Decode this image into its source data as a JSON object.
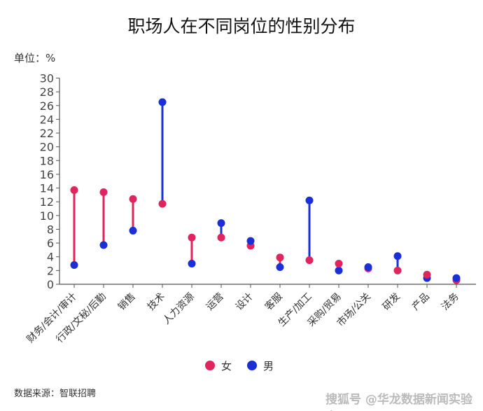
{
  "chart_data": {
    "type": "dumbbell",
    "title": "职场人在不同岗位的性别分布",
    "ylabel": "单位：%",
    "ylim": [
      0,
      30
    ],
    "yticks": [
      0,
      2,
      4,
      6,
      8,
      10,
      12,
      14,
      16,
      18,
      20,
      22,
      24,
      26,
      28,
      30
    ],
    "categories": [
      "财务/会计/审计",
      "行政/文秘/后勤",
      "销售",
      "技术",
      "人力资源",
      "运营",
      "设计",
      "客服",
      "生产/加工",
      "采购/贸易",
      "市场/公关",
      "研发",
      "产品",
      "法务"
    ],
    "series": [
      {
        "name": "女",
        "color": "#e0245e",
        "values": [
          13.7,
          13.4,
          12.4,
          11.7,
          6.8,
          6.8,
          5.6,
          3.9,
          3.5,
          3.0,
          2.3,
          2.0,
          1.4,
          0.6
        ]
      },
      {
        "name": "男",
        "color": "#1a2fd6",
        "values": [
          2.8,
          5.7,
          7.8,
          26.5,
          3.0,
          8.9,
          6.3,
          2.5,
          12.2,
          2.0,
          2.5,
          4.1,
          0.9,
          0.9
        ]
      }
    ],
    "legend": "bottom-center",
    "grid": false
  },
  "footer": {
    "source": "数据来源：智联招聘",
    "watermark": "搜狐号 @华龙数据新闻实验室"
  }
}
